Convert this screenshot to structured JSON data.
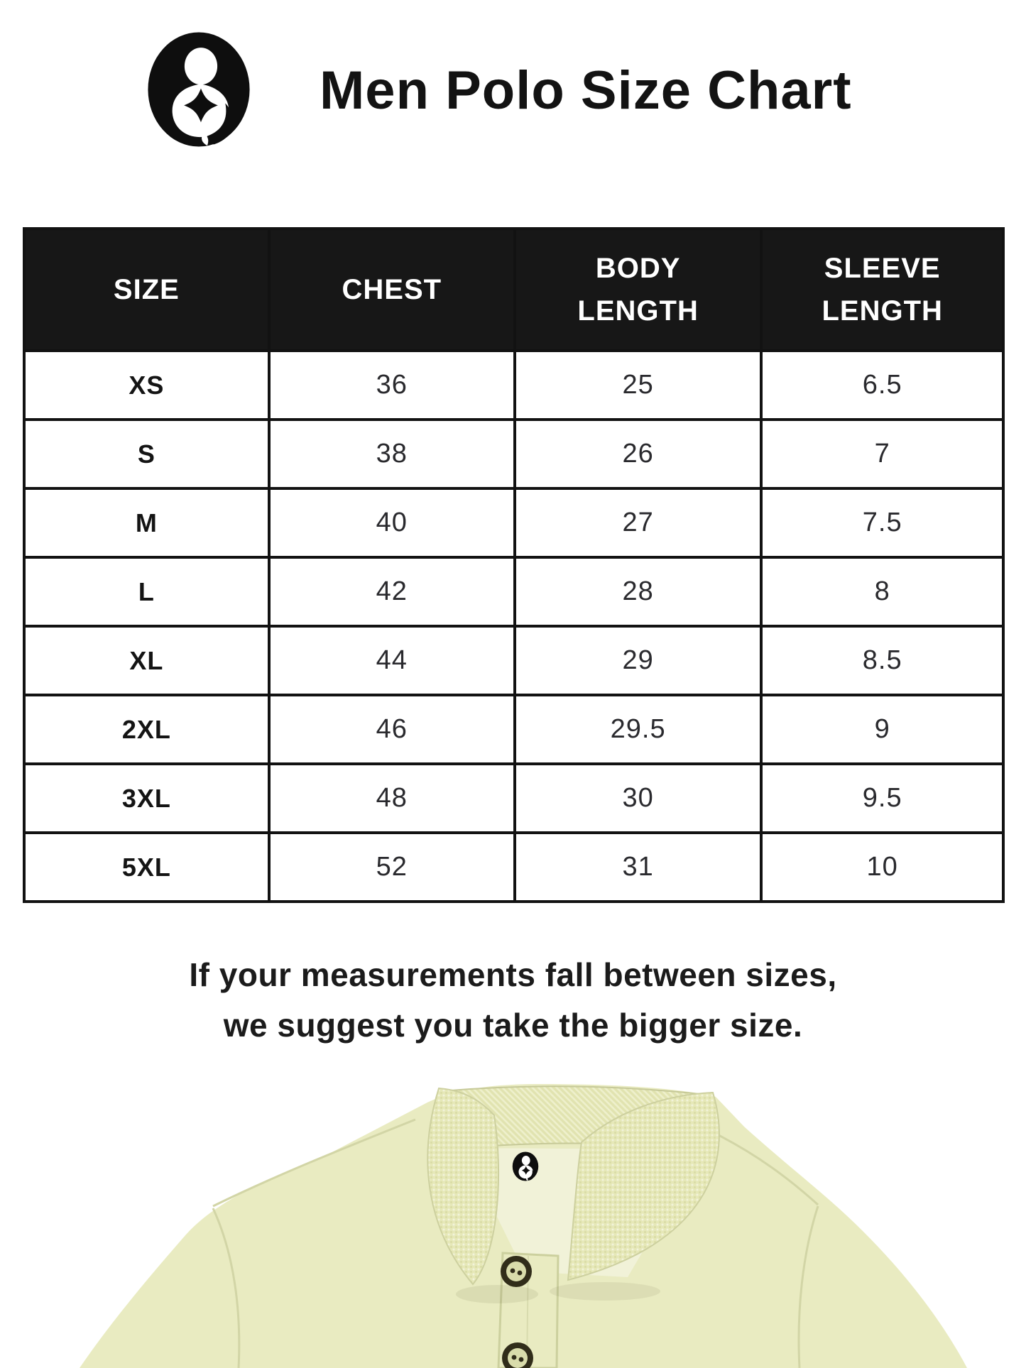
{
  "header": {
    "title": "Men Polo Size Chart",
    "logo_icon": "brand-logo-icon"
  },
  "table": {
    "columns": [
      "SIZE",
      "CHEST",
      "BODY LENGTH",
      "SLEEVE LENGTH"
    ],
    "rows": [
      [
        "XS",
        "36",
        "25",
        "6.5"
      ],
      [
        "S",
        "38",
        "26",
        "7"
      ],
      [
        "M",
        "40",
        "27",
        "7.5"
      ],
      [
        "L",
        "42",
        "28",
        "8"
      ],
      [
        "XL",
        "44",
        "29",
        "8.5"
      ],
      [
        "2XL",
        "46",
        "29.5",
        "9"
      ],
      [
        "3XL",
        "48",
        "30",
        "9.5"
      ],
      [
        "5XL",
        "52",
        "31",
        "10"
      ]
    ]
  },
  "note": {
    "line1": "If your measurements fall between sizes,",
    "line2": "we suggest you take the bigger size."
  },
  "product_image": {
    "name": "polo-shirt-collar-photo",
    "collar_logo_icon": "brand-logo-icon",
    "shirt_color": "#e9ebc1"
  },
  "colors": {
    "background": "#ffffff",
    "table_header_bg": "#171717",
    "table_header_text": "#ffffff",
    "table_border": "#121212",
    "title_text": "#131313",
    "note_text": "#1b1b1b",
    "shirt": "#e9ebc1",
    "shirt_inner": "#f1f2d8"
  }
}
